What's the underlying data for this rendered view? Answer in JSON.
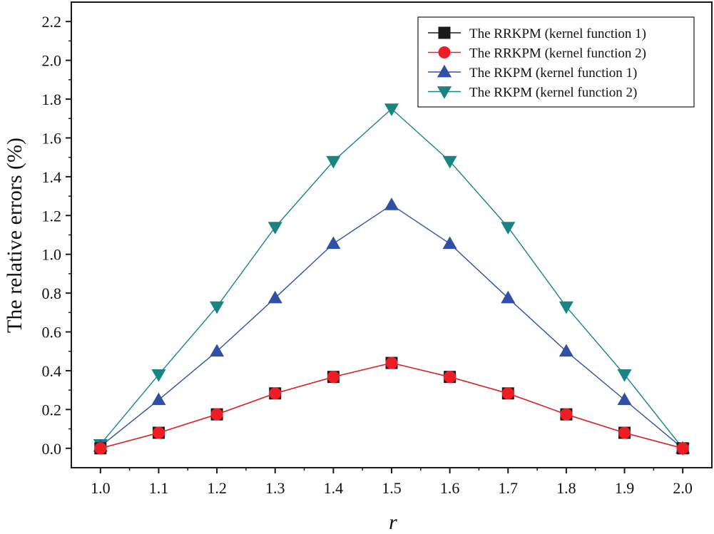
{
  "chart_data": {
    "type": "line",
    "title": "",
    "xlabel": "r",
    "ylabel": "The relative errors (%)",
    "xlim": [
      0.95,
      2.05
    ],
    "ylim": [
      -0.1,
      2.3
    ],
    "x": [
      1.0,
      1.1,
      1.2,
      1.3,
      1.4,
      1.5,
      1.6,
      1.7,
      1.8,
      1.9,
      2.0
    ],
    "x_tick_labels": [
      "1.0",
      "1.1",
      "1.2",
      "1.3",
      "1.4",
      "1.5",
      "1.6",
      "1.7",
      "1.8",
      "1.9",
      "2.0"
    ],
    "y_ticks": [
      0.0,
      0.2,
      0.4,
      0.6,
      0.8,
      1.0,
      1.2,
      1.4,
      1.6,
      1.8,
      2.0,
      2.2
    ],
    "y_tick_labels": [
      "0.0",
      "0.2",
      "0.4",
      "0.6",
      "0.8",
      "1.0",
      "1.2",
      "1.4",
      "1.6",
      "1.8",
      "2.0",
      "2.2"
    ],
    "legend_position": "top-right",
    "grid": false,
    "series": [
      {
        "name": "The RRKPM (kernel function 1)",
        "marker": "square",
        "color": "#1a1a1a",
        "values": [
          0.0,
          0.08,
          0.175,
          0.283,
          0.368,
          0.44,
          0.368,
          0.283,
          0.175,
          0.08,
          0.0
        ]
      },
      {
        "name": "The RRKPM (kernel function 2)",
        "marker": "circle",
        "color": "#ee1c25",
        "values": [
          0.0,
          0.08,
          0.175,
          0.283,
          0.368,
          0.44,
          0.368,
          0.283,
          0.175,
          0.08,
          0.0
        ]
      },
      {
        "name": "The RKPM (kernel function 1)",
        "marker": "triangle-up",
        "color": "#3050a8",
        "values": [
          0.01,
          0.25,
          0.5,
          0.775,
          1.055,
          1.255,
          1.055,
          0.775,
          0.5,
          0.25,
          0.0
        ]
      },
      {
        "name": "The RKPM (kernel function 2)",
        "marker": "triangle-down",
        "color": "#1a8484",
        "values": [
          0.02,
          0.38,
          0.73,
          1.14,
          1.48,
          1.75,
          1.48,
          1.14,
          0.73,
          0.38,
          0.0
        ]
      }
    ]
  }
}
